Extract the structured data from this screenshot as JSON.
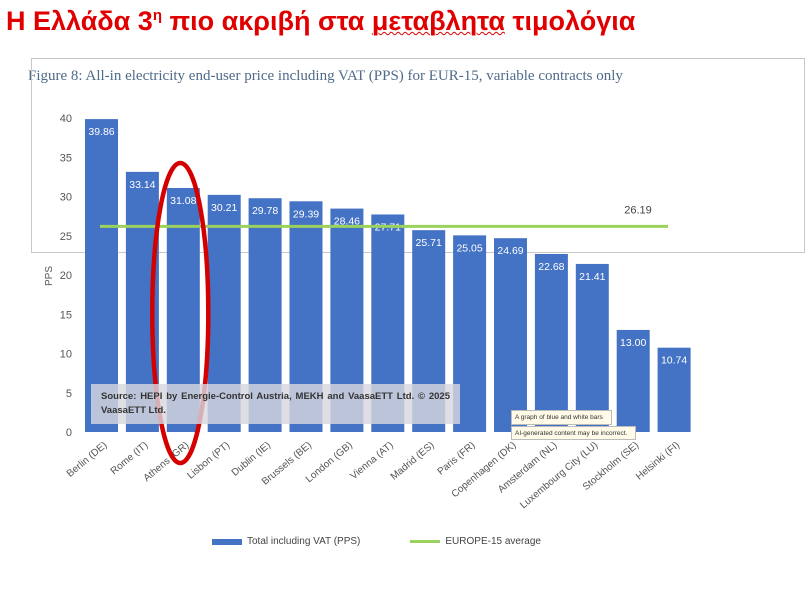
{
  "headline": {
    "part1": "Η Ελλάδα 3",
    "sup": "η",
    "part2": " πιο ακριβή στα ",
    "misspelled": "μεταβλητα",
    "part3": " τιμολόγια"
  },
  "caption": "Figure 8: All-in electricity end-user price including VAT (PPS) for EUR-15, variable contracts only",
  "source_note": "Source: HEPI by Energie-Control Austria, MEKH and VaasaETT Ltd. © 2025 VaasaETT Ltd.",
  "tooltip": {
    "line1": "A graph of blue and white bars",
    "line2": "AI-generated content may be incorrect."
  },
  "colors": {
    "headline": "#e00000",
    "bar": "#4472c4",
    "average_line": "#9bd25e",
    "highlight_ellipse": "#d40000"
  },
  "chart_data": {
    "type": "bar",
    "ylabel": "PPS",
    "ylim": [
      0,
      40
    ],
    "yticks": [
      0,
      5,
      10,
      15,
      20,
      25,
      30,
      35,
      40
    ],
    "grid": false,
    "legend_position": "bottom",
    "categories": [
      "Berlin (DE)",
      "Rome (IT)",
      "Athens (GR)",
      "Lisbon (PT)",
      "Dublin (IE)",
      "Brussels (BE)",
      "London (GB)",
      "Vienna (AT)",
      "Madrid (ES)",
      "Paris (FR)",
      "Copenhagen (DK)",
      "Amsterdam (NL)",
      "Luxembourg City (LU)",
      "Stockholm (SE)",
      "Helsinki (FI)"
    ],
    "series": [
      {
        "name": "Total including VAT (PPS)",
        "values": [
          39.86,
          33.14,
          31.08,
          30.21,
          29.78,
          29.39,
          28.46,
          27.71,
          25.71,
          25.05,
          24.69,
          22.68,
          21.41,
          13.0,
          10.74
        ]
      },
      {
        "name": "EUROPE-15 average",
        "value": 26.19
      }
    ],
    "data_labels": [
      "39.86",
      "33.14",
      "31.08",
      "30.21",
      "29.78",
      "29.39",
      "28.46",
      "27.71",
      "25.71",
      "25.05",
      "24.69",
      "22.68",
      "21.41",
      "13.00",
      "10.74"
    ],
    "average_label": "26.19",
    "highlighted_category": "Athens (GR)"
  }
}
